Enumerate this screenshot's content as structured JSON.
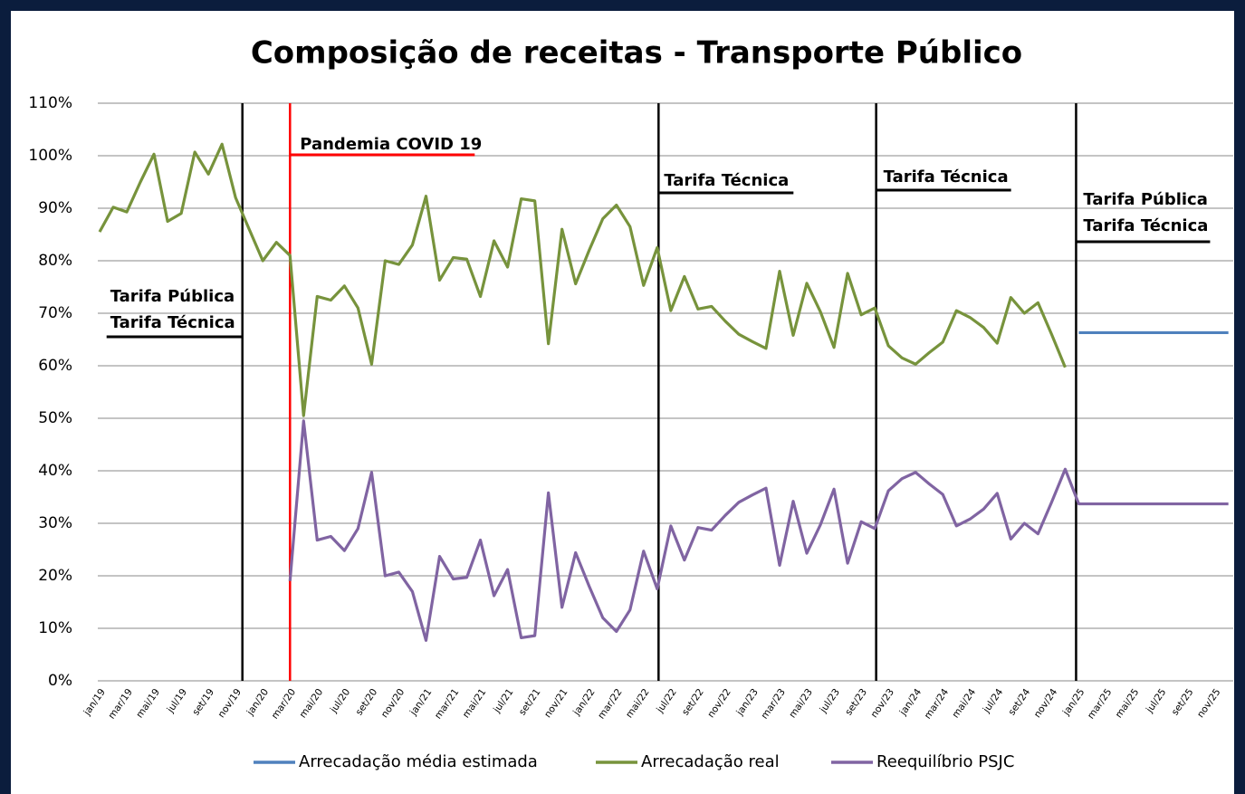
{
  "chart_data": {
    "type": "line",
    "title": "Composição de receitas - Transporte Público",
    "categories": [
      "jan/19",
      null,
      "mar/19",
      null,
      "mai/19",
      null,
      "jul/19",
      null,
      "set/19",
      null,
      "nov/19",
      null,
      "jan/20",
      null,
      "mar/20",
      null,
      "mai/20",
      null,
      "jul/20",
      null,
      "set/20",
      null,
      "nov/20",
      null,
      "jan/21",
      null,
      "mar/21",
      null,
      "mai/21",
      null,
      "jul/21",
      null,
      "set/21",
      null,
      "nov/21",
      null,
      "jan/22",
      null,
      "mar/22",
      null,
      "mai/22",
      null,
      "jul/22",
      null,
      "set/22",
      null,
      "nov/22",
      null,
      "jan/23",
      null,
      "mar/23",
      null,
      "mai/23",
      null,
      "jul/23",
      null,
      "set/23",
      null,
      "nov/23",
      null,
      "jan/24",
      null,
      "mar/24",
      null,
      "mai/24",
      null,
      "jul/24",
      null,
      "set/24",
      null,
      "nov/24",
      null,
      "jan/25",
      null,
      "mar/25",
      null,
      "mai/25",
      null,
      "jul/25",
      null,
      "set/25",
      null,
      "nov/25",
      null
    ],
    "series": [
      {
        "name": "Arrecadação média estimada",
        "color": "#4f81bd",
        "values": [
          null,
          null,
          null,
          null,
          null,
          null,
          null,
          null,
          null,
          null,
          null,
          null,
          null,
          null,
          null,
          null,
          null,
          null,
          null,
          null,
          null,
          null,
          null,
          null,
          null,
          null,
          null,
          null,
          null,
          null,
          null,
          null,
          null,
          null,
          null,
          null,
          null,
          null,
          null,
          null,
          null,
          null,
          null,
          null,
          null,
          null,
          null,
          null,
          null,
          null,
          null,
          null,
          null,
          null,
          null,
          null,
          null,
          null,
          null,
          null,
          null,
          null,
          null,
          null,
          null,
          null,
          null,
          null,
          null,
          null,
          null,
          null,
          66.3,
          66.3,
          66.3,
          66.3,
          66.3,
          66.3,
          66.3,
          66.3,
          66.3,
          66.3,
          66.3,
          66.3
        ]
      },
      {
        "name": "Arrecadação real",
        "color": "#77933c",
        "values": [
          85.5,
          90.2,
          89.3,
          95,
          100.3,
          87.5,
          89,
          100.7,
          96.5,
          102.2,
          92,
          86,
          80,
          83.5,
          81,
          50.5,
          73.2,
          72.5,
          75.2,
          71,
          60.3,
          80,
          79.3,
          83,
          92.3,
          76.3,
          80.6,
          80.3,
          73.2,
          83.8,
          78.8,
          91.8,
          91.4,
          64.2,
          86,
          75.6,
          82,
          88,
          90.6,
          86.5,
          75.3,
          82.5,
          70.5,
          77,
          70.8,
          71.3,
          68.5,
          66,
          64.6,
          63.3,
          78,
          65.8,
          75.7,
          70.3,
          63.5,
          77.6,
          69.7,
          71,
          63.8,
          61.5,
          60.3,
          62.5,
          64.5,
          70.5,
          69.2,
          67.3,
          64.3,
          73,
          70,
          72,
          66,
          59.7,
          null,
          null,
          null,
          null,
          null,
          null,
          null,
          null,
          null,
          null,
          null,
          null
        ]
      },
      {
        "name": "Reequilíbrio PSJC",
        "color": "#8064a2",
        "values": [
          null,
          null,
          null,
          null,
          null,
          null,
          null,
          null,
          null,
          null,
          null,
          null,
          null,
          null,
          19,
          49.5,
          26.8,
          27.5,
          24.8,
          29,
          39.7,
          20,
          20.7,
          17,
          7.7,
          23.7,
          19.4,
          19.7,
          26.8,
          16.2,
          21.2,
          8.2,
          8.6,
          35.8,
          14,
          24.4,
          18,
          12,
          9.4,
          13.5,
          24.7,
          17.5,
          29.5,
          23,
          29.2,
          28.7,
          31.5,
          34,
          35.4,
          36.7,
          22,
          34.2,
          24.3,
          29.7,
          36.5,
          22.4,
          30.3,
          29,
          36.2,
          38.5,
          39.7,
          37.5,
          35.5,
          29.5,
          30.8,
          32.7,
          35.7,
          27,
          30,
          28,
          34,
          40.3,
          33.7,
          33.7,
          33.7,
          33.7,
          33.7,
          33.7,
          33.7,
          33.7,
          33.7,
          33.7,
          33.7,
          33.7
        ]
      }
    ],
    "ylim": [
      0,
      110
    ],
    "yticks": [
      {
        "value": 0,
        "label": "0%"
      },
      {
        "value": 10,
        "label": "10%"
      },
      {
        "value": 20,
        "label": "20%"
      },
      {
        "value": 30,
        "label": "30%"
      },
      {
        "value": 40,
        "label": "40%"
      },
      {
        "value": 50,
        "label": "50%"
      },
      {
        "value": 60,
        "label": "60%"
      },
      {
        "value": 70,
        "label": "70%"
      },
      {
        "value": 80,
        "label": "80%"
      },
      {
        "value": 90,
        "label": "90%"
      },
      {
        "value": 100,
        "label": "100%"
      },
      {
        "value": 110,
        "label": "110%"
      }
    ],
    "grid": true,
    "legend": "bottom",
    "annotations": [
      {
        "x": 10.5,
        "color": "#000000",
        "texts": [
          "Tarifa Pública",
          "Tarifa Técnica"
        ]
      },
      {
        "x": 14,
        "color": "#ff0000",
        "texts": [
          "Pandemia COVID 19"
        ]
      },
      {
        "x": 41.1,
        "color": "#000000",
        "texts": [
          "Tarifa Técnica"
        ]
      },
      {
        "x": 57.1,
        "color": "#000000",
        "texts": [
          "Tarifa Técnica"
        ]
      },
      {
        "x": 71.8,
        "color": "#000000",
        "texts": [
          "Tarifa Pública",
          "Tarifa Técnica"
        ]
      }
    ]
  }
}
